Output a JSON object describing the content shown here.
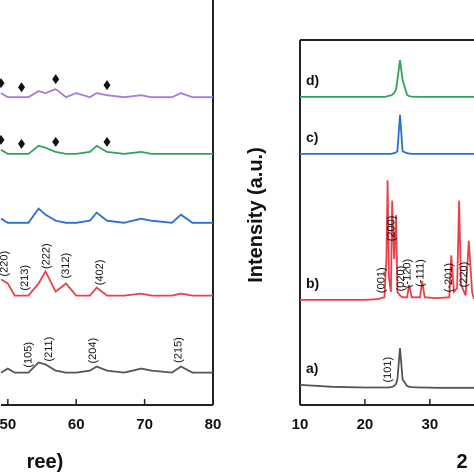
{
  "chart_data": [
    {
      "type": "line",
      "xlabel": "ree)",
      "xlim": [
        49,
        80
      ],
      "ylim": [
        0,
        100
      ],
      "xticks": [
        50,
        60,
        70,
        80
      ],
      "x": [
        49,
        50,
        51,
        53,
        54.5,
        55.5,
        57,
        58.5,
        60,
        62,
        63,
        64.5,
        67,
        69.5,
        71,
        74,
        75.3,
        77,
        80
      ],
      "series": [
        {
          "color": "#555555",
          "values": [
            8,
            9,
            8,
            8,
            10.5,
            10,
            8.5,
            8,
            8,
            8.5,
            9.5,
            8.5,
            8,
            9,
            8.5,
            8,
            9.5,
            8,
            8
          ],
          "peak_labels": [
            {
              "text": "(105)",
              "x": 53
            },
            {
              "text": "(211)",
              "x": 56
            },
            {
              "text": "(204)",
              "x": 62.5
            },
            {
              "text": "(215)",
              "x": 75
            }
          ]
        },
        {
          "color": "#e8414a",
          "values": [
            31,
            30,
            27,
            27,
            30,
            33,
            28,
            30,
            27,
            27,
            29,
            27,
            27,
            27.5,
            27,
            27,
            27.5,
            27,
            27
          ],
          "peak_labels": [
            {
              "text": "(220)",
              "x": 49.5
            },
            {
              "text": "(213)",
              "x": 52.5
            },
            {
              "text": "(222)",
              "x": 55.7
            },
            {
              "text": "(312)",
              "x": 58.5
            },
            {
              "text": "(402)",
              "x": 63.5
            }
          ]
        },
        {
          "color": "#2a6fd6",
          "values": [
            46,
            45,
            45,
            45,
            48.5,
            47,
            45.5,
            45,
            45,
            45.5,
            47.5,
            45.5,
            45,
            46,
            45.5,
            45,
            47,
            45,
            45
          ]
        },
        {
          "color": "#2ea35a",
          "values": [
            63,
            62,
            62,
            62,
            64,
            63.5,
            62.5,
            62,
            62,
            62.5,
            64,
            62.5,
            62,
            62.5,
            62,
            62,
            62,
            62,
            62
          ],
          "markers_x": [
            49,
            52,
            57,
            64.5
          ]
        },
        {
          "color": "#a77bd8",
          "values": [
            77,
            76,
            76,
            76,
            77.5,
            77,
            78,
            76,
            77,
            76,
            77,
            76.5,
            76,
            76.5,
            76,
            76,
            77,
            76,
            76
          ],
          "markers_x": [
            49,
            52,
            57,
            64.5
          ]
        }
      ]
    },
    {
      "type": "line",
      "xlabel": "2",
      "ylabel": "Intensity (a.u.)",
      "xlim": [
        10,
        36.8
      ],
      "ylim": [
        0,
        100
      ],
      "xticks": [
        10,
        20,
        30
      ],
      "x": [
        10,
        15,
        20,
        22,
        23,
        23.3,
        23.5,
        23.7,
        24,
        24.2,
        24.5,
        24.8,
        25,
        25.4,
        25.8,
        26.5,
        26.8,
        27.2,
        28.5,
        28.8,
        29.2,
        31,
        33,
        33.3,
        33.7,
        34.2,
        34.5,
        34.8,
        35.5,
        36,
        36.5,
        36.8
      ],
      "series": [
        {
          "name": "a)",
          "color": "#555555",
          "values": [
            5.5,
            5,
            4.8,
            4.8,
            4.8,
            4.8,
            4.8,
            4.8,
            4.9,
            5,
            5.2,
            5.8,
            7,
            15.6,
            7,
            5.2,
            5,
            4.9,
            4.8,
            4.8,
            4.8,
            4.7,
            4.7,
            4.7,
            4.7,
            4.7,
            4.7,
            4.7,
            4.7,
            4.7,
            4.7,
            4.7
          ],
          "peak_labels": [
            {
              "text": "(101)",
              "x": 23.6
            }
          ]
        },
        {
          "name": "b)",
          "color": "#e8414a",
          "values": [
            28.8,
            28.8,
            28.8,
            29,
            29.5,
            40,
            61.6,
            35,
            31,
            56,
            40,
            52,
            31,
            30,
            29.5,
            29.5,
            32.9,
            29.5,
            29.5,
            34,
            29.5,
            29.3,
            29.5,
            41,
            31,
            32,
            56,
            33,
            30,
            45,
            31,
            29
          ],
          "peak_labels": [
            {
              "text": "(001)",
              "x": 22.6
            },
            {
              "text": "(200)",
              "x": 24.1
            },
            {
              "text": "(020)",
              "x": 25.6
            },
            {
              "text": "(-120)",
              "x": 26.6
            },
            {
              "text": "(-111)",
              "x": 28.6
            },
            {
              "text": "(-201)",
              "x": 33
            },
            {
              "text": "(220)",
              "x": 35.3
            }
          ]
        },
        {
          "name": "c)",
          "color": "#2a6fd6",
          "values": [
            68.8,
            68.8,
            68.8,
            68.8,
            68.8,
            68.8,
            68.8,
            68.8,
            68.8,
            68.9,
            69,
            69.2,
            69.5,
            79.5,
            69.5,
            69,
            68.9,
            68.8,
            68.8,
            68.8,
            68.8,
            68.8,
            68.8,
            68.8,
            68.8,
            68.8,
            68.8,
            68.8,
            68.8,
            68.8,
            68.8,
            68.8
          ]
        },
        {
          "name": "d)",
          "color": "#2ea35a",
          "values": [
            84.4,
            84.4,
            84.4,
            84.4,
            84.4,
            84.5,
            84.6,
            84.7,
            84.8,
            85,
            85.5,
            86.5,
            89,
            94.5,
            89,
            85,
            84.6,
            84.5,
            84.4,
            84.4,
            84.4,
            84.4,
            84.4,
            84.4,
            84.4,
            84.4,
            84.4,
            84.4,
            84.4,
            84.4,
            84.4,
            84.4
          ]
        }
      ]
    }
  ]
}
